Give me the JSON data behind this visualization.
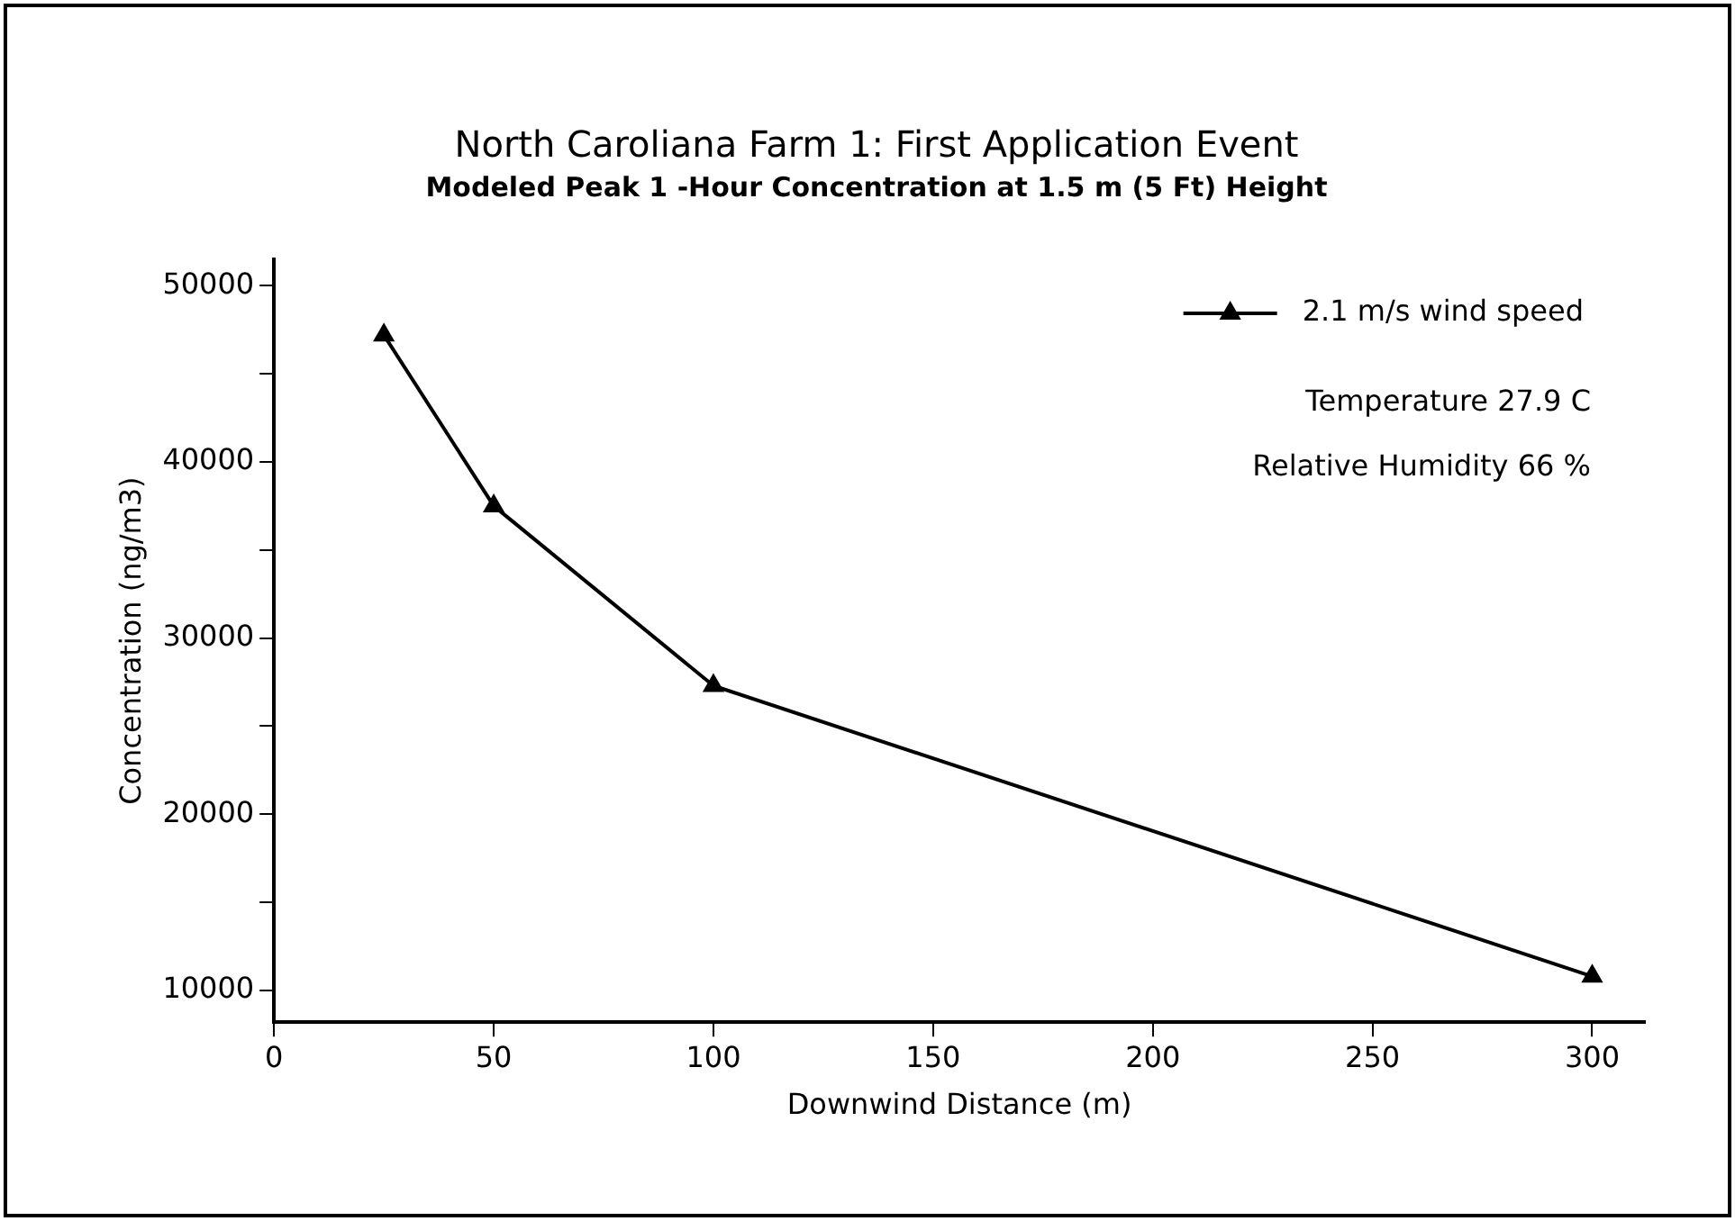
{
  "chart_data": {
    "type": "line",
    "title": "North Caroliana Farm 1: First Application Event",
    "subtitle": "Modeled Peak 1 -Hour Concentration at 1.5 m (5 Ft) Height",
    "xlabel": "Downwind Distance (m)",
    "ylabel": "Concentration (ng/m3)",
    "x": [
      25,
      50,
      100,
      300
    ],
    "series": [
      {
        "name": "2.1 m/s wind speed",
        "color": "#000000",
        "values": [
          47200,
          37500,
          27300,
          10800
        ]
      }
    ],
    "xlim": [
      0,
      312
    ],
    "xticks": [
      0,
      50,
      100,
      150,
      200,
      250,
      300
    ],
    "ylim": [
      8200,
      51500
    ],
    "yticks": [
      10000,
      {
        "value": 15000,
        "label": null
      },
      20000,
      {
        "value": 25000,
        "label": null
      },
      30000,
      {
        "value": 35000,
        "label": null
      },
      40000,
      {
        "value": 45000,
        "label": null
      },
      50000
    ],
    "annotations": [
      "Temperature 27.9 C",
      "Relative Humidity 66 %"
    ],
    "legend": "top right",
    "grid": false,
    "marker": "triangle",
    "line_style": "solid"
  }
}
